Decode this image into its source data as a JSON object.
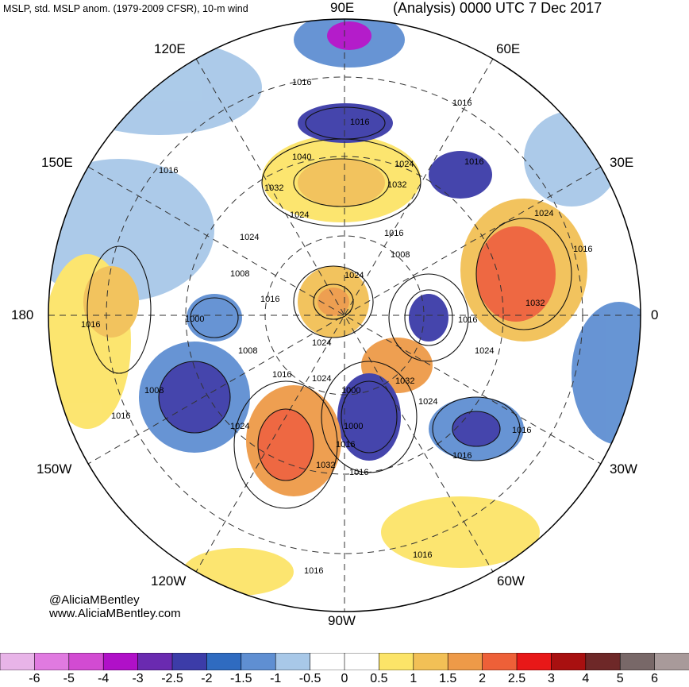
{
  "header": {
    "left_title": "MSLP, std. MSLP anom. (1979-2009 CFSR), 10-m wind",
    "right_title": "(Analysis) 0000 UTC 7 Dec 2017"
  },
  "map": {
    "projection": "north-polar-stereographic",
    "longitude_labels": {
      "n": "90E",
      "ne": "60E",
      "ene": "30E",
      "e": "0",
      "ese": "30W",
      "se": "60W",
      "s": "90W",
      "sw": "120W",
      "wsw": "150W",
      "w": "180",
      "wnw": "150E",
      "nw": "120E"
    },
    "isobar_labels": [
      "1016",
      "1016",
      "1016",
      "1016",
      "1040",
      "1032",
      "1024",
      "1016",
      "1024",
      "1032",
      "1024",
      "1016",
      "1008",
      "1024",
      "1008",
      "1016",
      "1000",
      "1024",
      "1016",
      "1032",
      "1008",
      "1016",
      "1024",
      "1016",
      "1000",
      "1024",
      "1032",
      "1016",
      "1024",
      "1016",
      "1032",
      "1016",
      "1024",
      "1016",
      "1008",
      "1000",
      "1016",
      "1024",
      "1016",
      "1016",
      "1016"
    ],
    "colors": {
      "ocean_bg": "#ffffff",
      "land": "#bdbdbd"
    }
  },
  "credits": {
    "handle": "@AliciaMBentley",
    "website": "www.AliciaMBentley.com"
  },
  "colorbar": {
    "labels": [
      "-6",
      "-5",
      "-4",
      "-3",
      "-2.5",
      "-2",
      "-1.5",
      "-1",
      "-0.5",
      "0",
      "0.5",
      "1",
      "1.5",
      "2",
      "2.5",
      "3",
      "4",
      "5",
      "6"
    ],
    "colors": [
      "#e8b4e8",
      "#e07ae0",
      "#d24bd2",
      "#b010c8",
      "#6a2ab0",
      "#3c3ca8",
      "#2f6bc0",
      "#5f8fd2",
      "#a8c8e8",
      "#ffffff",
      "#ffffff",
      "#fce468",
      "#f2c056",
      "#ee9a48",
      "#ee6038",
      "#e81818",
      "#a81010",
      "#6e2828",
      "#786868",
      "#a89a9a"
    ]
  }
}
